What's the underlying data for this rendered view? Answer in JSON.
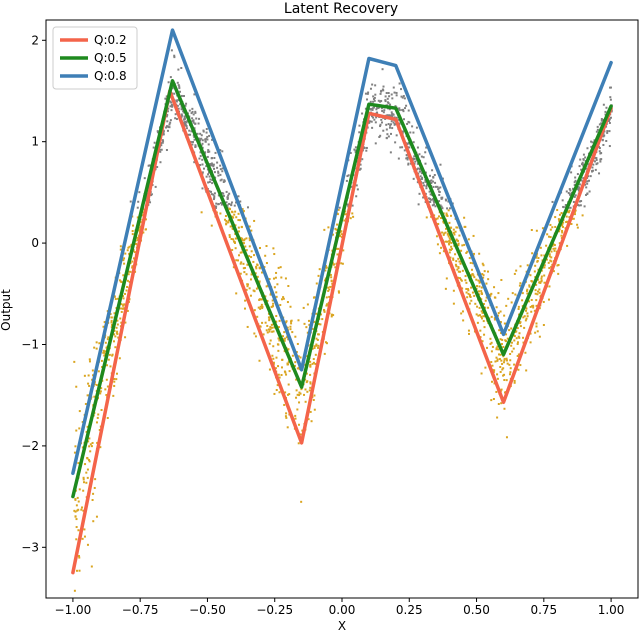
{
  "chart_data": {
    "type": "line",
    "title": "Latent Recovery",
    "xlabel": "X",
    "ylabel": "Output",
    "xlim": [
      -1.1,
      1.1
    ],
    "ylim": [
      -3.5,
      2.2
    ],
    "xticks": [
      -1.0,
      -0.75,
      -0.5,
      -0.25,
      0.0,
      0.25,
      0.5,
      0.75,
      1.0
    ],
    "xtick_labels": [
      "−1.00",
      "−0.75",
      "−0.50",
      "−0.25",
      "0.00",
      "0.25",
      "0.50",
      "0.75",
      "1.00"
    ],
    "yticks": [
      -3,
      -2,
      -1,
      0,
      1,
      2
    ],
    "ytick_labels": [
      "−3",
      "−2",
      "−1",
      "0",
      "1",
      "2"
    ],
    "legend_position": "top-left",
    "grid": false,
    "series": [
      {
        "name": "Q:0.2",
        "color": "#f4644a",
        "x": [
          -1.0,
          -0.64,
          -0.15,
          0.1,
          0.2,
          0.6,
          1.0
        ],
        "y": [
          -3.25,
          1.5,
          -1.97,
          1.28,
          1.22,
          -1.57,
          1.33
        ]
      },
      {
        "name": "Q:0.5",
        "color": "#1e8a1e",
        "x": [
          -1.0,
          -0.63,
          -0.15,
          0.1,
          0.2,
          0.6,
          1.0
        ],
        "y": [
          -2.5,
          1.6,
          -1.42,
          1.37,
          1.33,
          -1.1,
          1.35
        ]
      },
      {
        "name": "Q:0.8",
        "color": "#3e7fb6",
        "x": [
          -1.0,
          -0.63,
          -0.15,
          0.1,
          0.2,
          0.6,
          1.0
        ],
        "y": [
          -2.27,
          2.1,
          -1.25,
          1.82,
          1.75,
          -0.9,
          1.78
        ]
      }
    ],
    "scatter_colors": {
      "upper": "#808080",
      "lower": "#daa520"
    }
  }
}
